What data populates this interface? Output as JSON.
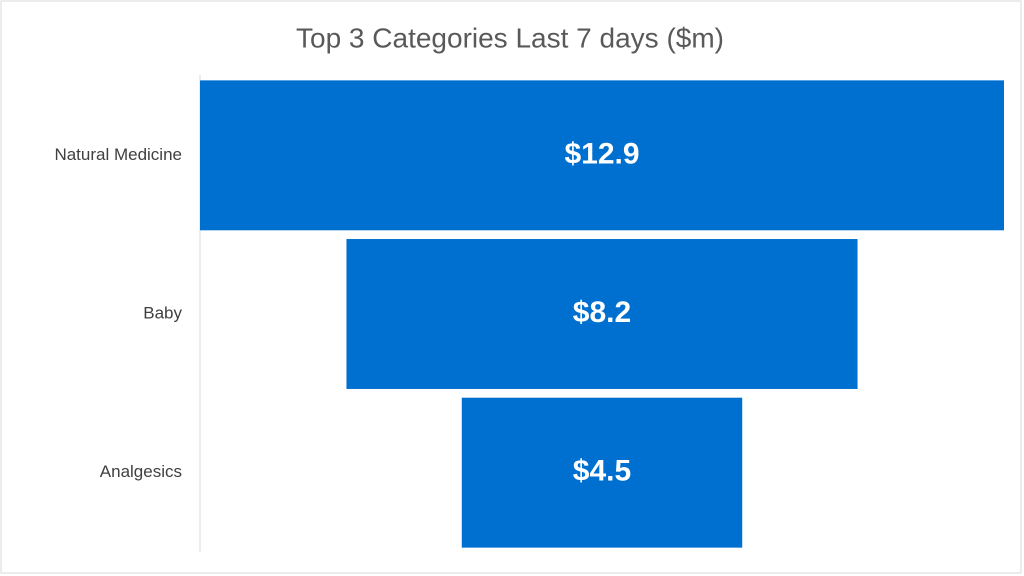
{
  "chart_data": {
    "type": "funnel",
    "title": "Top 3 Categories Last 7 days ($m)",
    "categories": [
      "Natural Medicine",
      "Baby",
      "Analgesics"
    ],
    "values": [
      12.9,
      8.2,
      4.5
    ],
    "value_labels": [
      "$12.9",
      "$8.2",
      "$4.5"
    ],
    "color": "#0070d0"
  }
}
